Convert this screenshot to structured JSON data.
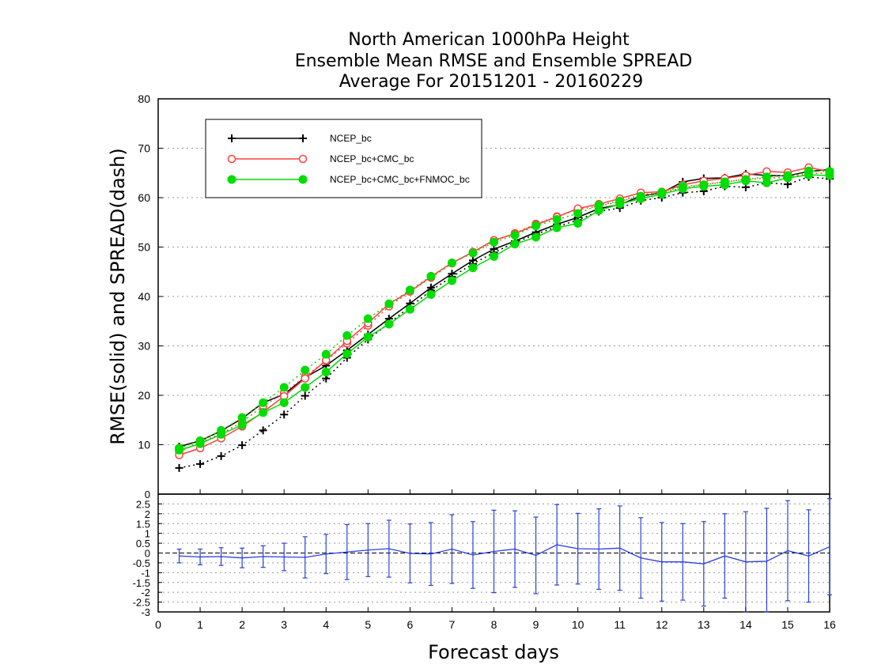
{
  "chart_data": [
    {
      "type": "line",
      "title": [
        "North American 1000hPa Height",
        "Ensemble Mean RMSE and Ensemble SPREAD",
        "Average For 20151201 - 20160229"
      ],
      "xlabel": "Forecast days",
      "ylabel": "RMSE(solid) and SPREAD(dash)",
      "xlim": [
        0,
        16
      ],
      "ylim": [
        0,
        80
      ],
      "xticks": [
        "0",
        "1",
        "2",
        "3",
        "4",
        "5",
        "6",
        "7",
        "8",
        "9",
        "10",
        "11",
        "12",
        "13",
        "14",
        "15",
        "16"
      ],
      "yticks": [
        "10",
        "20",
        "30",
        "40",
        "50",
        "60",
        "70",
        "80"
      ],
      "grid": true,
      "legend_position": "top-left",
      "x": [
        0.5,
        1,
        1.5,
        2,
        2.5,
        3,
        3.5,
        4,
        4.5,
        5,
        5.5,
        6,
        6.5,
        7,
        7.5,
        8,
        8.5,
        9,
        9.5,
        10,
        10.5,
        11,
        11.5,
        12,
        12.5,
        13,
        13.5,
        14,
        14.5,
        15,
        15.5,
        16
      ],
      "series": [
        {
          "name": "NCEP_bc",
          "color": "#000000",
          "marker": "plus",
          "rmse": [
            9.6,
            10.8,
            12.8,
            15.3,
            18.5,
            20.2,
            23.6,
            26.0,
            29.1,
            32.3,
            35.5,
            38.6,
            41.8,
            44.6,
            47.3,
            49.6,
            51.2,
            53.0,
            54.6,
            56.0,
            57.8,
            58.6,
            60.3,
            61.0,
            63.2,
            63.9,
            64.0,
            64.8,
            64.5,
            64.4,
            65.3,
            65.7
          ],
          "spread": [
            5.3,
            6.1,
            7.7,
            9.9,
            12.9,
            16.1,
            19.9,
            23.4,
            27.6,
            31.3,
            34.6,
            37.9,
            41.2,
            44.0,
            46.6,
            48.9,
            50.9,
            52.6,
            54.1,
            55.5,
            57.2,
            57.9,
            59.4,
            60.0,
            61.0,
            61.3,
            62.3,
            62.1,
            63.0,
            62.7,
            64.2,
            63.8
          ]
        },
        {
          "name": "NCEP_bc+CMC_bc",
          "color": "#ff4040",
          "marker": "circle-open",
          "rmse": [
            7.9,
            9.3,
            11.3,
            13.7,
            16.6,
            19.8,
            23.4,
            27.1,
            31.0,
            34.6,
            38.5,
            41.0,
            44.0,
            46.8,
            49.0,
            51.4,
            52.7,
            54.5,
            56.1,
            57.8,
            58.7,
            59.8,
            61.0,
            61.2,
            62.6,
            63.4,
            63.9,
            64.5,
            65.3,
            65.1,
            66.1,
            65.3
          ],
          "spread": [
            8.6,
            10.5,
            12.2,
            14.6,
            17.8,
            20.5,
            23.8,
            27.0,
            30.5,
            34.1,
            38.0,
            41.0,
            43.8,
            46.7,
            49.0,
            51.2,
            52.8,
            54.7,
            56.2,
            57.6,
            58.3,
            59.2,
            60.6,
            61.0,
            62.0,
            62.7,
            63.2,
            63.7,
            64.0,
            64.1,
            64.9,
            65.0
          ]
        },
        {
          "name": "NCEP_bc+CMC_bc+FNMOC_bc",
          "color": "#00dd00",
          "marker": "circle-filled",
          "rmse": [
            8.9,
            10.2,
            12.1,
            14.0,
            16.5,
            18.5,
            21.6,
            24.7,
            28.4,
            31.8,
            34.4,
            37.4,
            40.4,
            43.2,
            45.8,
            48.1,
            50.6,
            52.0,
            53.9,
            54.8,
            57.4,
            58.7,
            59.8,
            60.7,
            61.8,
            62.3,
            62.6,
            63.4,
            63.0,
            64.0,
            64.6,
            64.5
          ],
          "spread": [
            9.3,
            10.8,
            12.9,
            15.5,
            18.5,
            21.6,
            25.1,
            28.3,
            32.1,
            35.5,
            38.5,
            41.3,
            44.1,
            46.8,
            48.8,
            51.0,
            52.4,
            54.3,
            55.6,
            56.8,
            58.5,
            59.3,
            60.3,
            61.1,
            62.3,
            62.6,
            63.2,
            63.7,
            64.2,
            64.5,
            65.4,
            65.3
          ]
        }
      ]
    },
    {
      "type": "line",
      "name": "difference",
      "ylim": [
        -3,
        3
      ],
      "yticks": [
        "2.5",
        "2",
        "1.5",
        "1",
        "0.5",
        "0",
        "-0.5",
        "-1",
        "-1.5",
        "-2",
        "-2.5",
        "-3"
      ],
      "top_label": "0",
      "color": "#2a3fe0",
      "x": [
        0.5,
        1,
        1.5,
        2,
        2.5,
        3,
        3.5,
        4,
        4.5,
        5,
        5.5,
        6,
        6.5,
        7,
        7.5,
        8,
        8.5,
        9,
        9.5,
        10,
        10.5,
        11,
        11.5,
        12,
        12.5,
        13,
        13.5,
        14,
        14.5,
        15,
        15.5,
        16
      ],
      "values": [
        -0.15,
        -0.2,
        -0.18,
        -0.25,
        -0.18,
        -0.2,
        -0.22,
        -0.05,
        0.05,
        0.15,
        0.22,
        -0.02,
        -0.05,
        0.2,
        -0.1,
        0.08,
        0.2,
        -0.12,
        0.42,
        0.22,
        0.2,
        0.25,
        -0.25,
        -0.45,
        -0.45,
        -0.55,
        -0.15,
        -0.45,
        -0.42,
        0.12,
        -0.15,
        0.32
      ],
      "error": [
        0.35,
        0.4,
        0.45,
        0.5,
        0.55,
        0.7,
        1.05,
        1.0,
        1.4,
        1.35,
        1.45,
        1.5,
        1.6,
        1.75,
        1.7,
        2.1,
        1.95,
        1.95,
        2.05,
        1.8,
        2.05,
        2.15,
        2.05,
        2.0,
        1.95,
        2.15,
        2.15,
        2.55,
        2.7,
        2.55,
        2.35,
        2.45
      ]
    }
  ]
}
